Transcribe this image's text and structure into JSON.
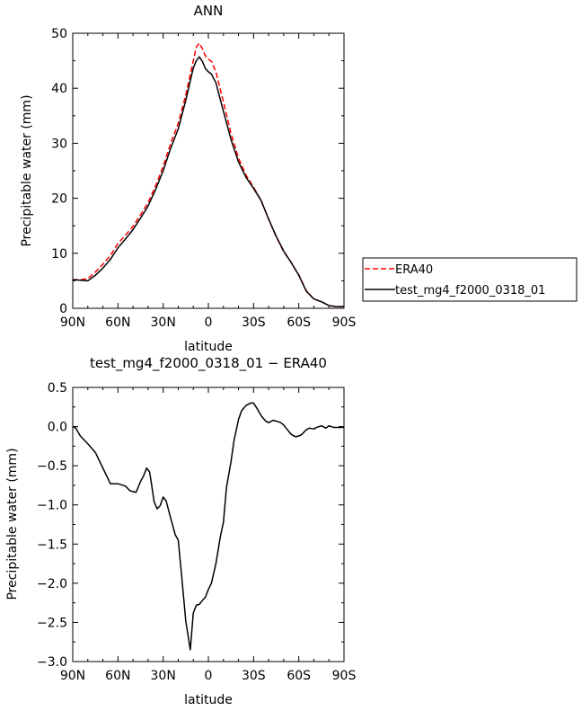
{
  "chart_data": [
    {
      "type": "line",
      "title": "ANN",
      "xlabel": "latitude",
      "ylabel": "Precipitable water (mm)",
      "xlim": [
        90,
        -90
      ],
      "ylim": [
        0,
        50
      ],
      "yticks": [
        0,
        10,
        20,
        30,
        40,
        50
      ],
      "xticks": [
        90,
        60,
        30,
        0,
        -30,
        -60,
        -90
      ],
      "xtick_labels": [
        "90N",
        "60N",
        "30N",
        "0",
        "30S",
        "60S",
        "90S"
      ],
      "legend_position": "right",
      "series": [
        {
          "name": "ERA40",
          "color": "#ff0000",
          "dash": "dashed",
          "x": [
            90,
            85,
            80,
            75,
            70,
            65,
            60,
            55,
            50,
            45,
            40,
            35,
            30,
            25,
            20,
            15,
            10,
            8,
            6,
            4,
            2,
            0,
            -2,
            -5,
            -10,
            -15,
            -20,
            -25,
            -30,
            -35,
            -40,
            -45,
            -50,
            -55,
            -60,
            -65,
            -70,
            -75,
            -80,
            -85,
            -90
          ],
          "y": [
            5.2,
            5.2,
            5.4,
            6.6,
            8.0,
            9.6,
            11.8,
            13.3,
            14.9,
            17.0,
            19.2,
            22.3,
            25.8,
            30.0,
            33.6,
            38.8,
            45.0,
            47.5,
            48.2,
            47.2,
            45.9,
            45.3,
            44.9,
            43.0,
            37.5,
            31.8,
            27.3,
            24.2,
            22.0,
            19.6,
            16.2,
            13.0,
            10.3,
            8.3,
            6.1,
            3.2,
            1.7,
            1.2,
            0.5,
            0.3,
            0.3
          ]
        },
        {
          "name": "test_mg4_f2000_0318_01",
          "color": "#000000",
          "dash": "solid",
          "x": [
            90,
            85,
            80,
            75,
            70,
            65,
            60,
            55,
            50,
            45,
            40,
            35,
            30,
            25,
            20,
            15,
            10,
            8,
            6,
            4,
            2,
            0,
            -2,
            -5,
            -10,
            -15,
            -20,
            -25,
            -30,
            -35,
            -40,
            -45,
            -50,
            -55,
            -60,
            -65,
            -70,
            -75,
            -80,
            -85,
            -90
          ],
          "y": [
            5.2,
            5.1,
            5.0,
            6.0,
            7.3,
            8.9,
            11.0,
            12.6,
            14.3,
            16.4,
            18.6,
            21.6,
            25.0,
            29.1,
            32.6,
            37.8,
            43.7,
            45.0,
            45.7,
            44.9,
            43.6,
            43.0,
            42.6,
            41.0,
            35.8,
            30.7,
            26.6,
            23.8,
            21.8,
            19.6,
            16.2,
            13.1,
            10.4,
            8.3,
            6.0,
            3.1,
            1.7,
            1.2,
            0.5,
            0.3,
            0.3
          ]
        }
      ]
    },
    {
      "type": "line",
      "title": "test_mg4_f2000_0318_01 − ERA40",
      "xlabel": "latitude",
      "ylabel": "Precipitable water (mm)",
      "xlim": [
        90,
        -90
      ],
      "ylim": [
        -3.0,
        0.5
      ],
      "yticks": [
        -3.0,
        -2.5,
        -2.0,
        -1.5,
        -1.0,
        -0.5,
        0.0,
        0.5
      ],
      "ytick_labels": [
        "−3.0",
        "−2.5",
        "−2.0",
        "−1.5",
        "−1.0",
        "−0.5",
        "0.0",
        "0.5"
      ],
      "xticks": [
        90,
        60,
        30,
        0,
        -30,
        -60,
        -90
      ],
      "xtick_labels": [
        "90N",
        "60N",
        "30N",
        "0",
        "30S",
        "60S",
        "90S"
      ],
      "series": [
        {
          "name": "",
          "color": "#000000",
          "dash": "solid",
          "x": [
            90,
            88,
            85,
            80,
            75,
            70,
            65,
            60,
            55,
            52,
            48,
            45,
            43,
            41,
            39,
            38,
            36,
            34,
            32,
            30,
            28,
            25,
            22,
            20,
            18,
            15,
            12,
            10,
            8,
            6,
            4,
            2,
            0,
            -2,
            -5,
            -8,
            -10,
            -12,
            -15,
            -17,
            -20,
            -22,
            -25,
            -28,
            -30,
            -32,
            -35,
            -38,
            -40,
            -43,
            -45,
            -48,
            -50,
            -52,
            -55,
            -58,
            -60,
            -62,
            -65,
            -67,
            -70,
            -72,
            -75,
            -78,
            -80,
            -83,
            -85,
            -90
          ],
          "y": [
            0.0,
            -0.02,
            -0.12,
            -0.22,
            -0.33,
            -0.53,
            -0.73,
            -0.73,
            -0.76,
            -0.82,
            -0.84,
            -0.7,
            -0.63,
            -0.53,
            -0.58,
            -0.7,
            -0.96,
            -1.05,
            -1.01,
            -0.9,
            -0.95,
            -1.17,
            -1.38,
            -1.45,
            -1.85,
            -2.48,
            -2.85,
            -2.38,
            -2.28,
            -2.27,
            -2.22,
            -2.18,
            -2.08,
            -2.0,
            -1.75,
            -1.4,
            -1.22,
            -0.78,
            -0.45,
            -0.18,
            0.09,
            0.2,
            0.27,
            0.3,
            0.3,
            0.24,
            0.14,
            0.07,
            0.05,
            0.08,
            0.07,
            0.05,
            0.02,
            -0.03,
            -0.1,
            -0.13,
            -0.12,
            -0.1,
            -0.04,
            -0.02,
            -0.03,
            -0.01,
            0.01,
            -0.02,
            0.01,
            -0.01,
            -0.01,
            -0.01
          ]
        }
      ]
    }
  ]
}
